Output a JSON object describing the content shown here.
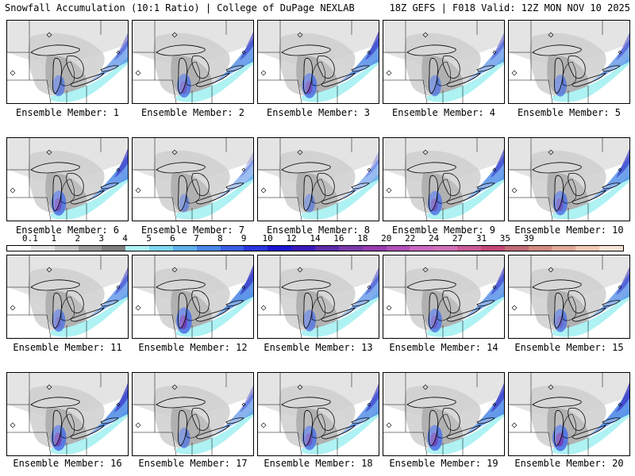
{
  "header": {
    "left": "Snowfall Accumulation (10:1 Ratio) | College of DuPage NEXLAB",
    "right": "18Z GEFS | F018 Valid: 12Z MON NOV 10 2025"
  },
  "colorbar": {
    "labels": [
      "0.1",
      "1",
      "2",
      "3",
      "4",
      "5",
      "6",
      "7",
      "8",
      "9",
      "10",
      "12",
      "14",
      "16",
      "18",
      "20",
      "22",
      "24",
      "27",
      "31",
      "35",
      "39"
    ],
    "colors": [
      "#ffffff",
      "#e2e2e2",
      "#c4c4c4",
      "#9a9a9a",
      "#7e7e7e",
      "#aef2f4",
      "#7fd8ee",
      "#5fb0ea",
      "#4a88e6",
      "#3a5ee4",
      "#2a36dc",
      "#1b14d0",
      "#3a18b8",
      "#5a2aa8",
      "#7a3aa8",
      "#963cb0",
      "#b050b8",
      "#c868c0",
      "#d070b8",
      "#c85a98",
      "#c24878",
      "#c06a78",
      "#d08a80",
      "#e0a898",
      "#f0c8b4",
      "#f8e2d4"
    ]
  },
  "panels": [
    {
      "label": "Ensemble Member: 1",
      "intensity": 0.55
    },
    {
      "label": "Ensemble Member: 2",
      "intensity": 0.75
    },
    {
      "label": "Ensemble Member: 3",
      "intensity": 0.85
    },
    {
      "label": "Ensemble Member: 4",
      "intensity": 0.55
    },
    {
      "label": "Ensemble Member: 5",
      "intensity": 0.6
    },
    {
      "label": "Ensemble Member: 6",
      "intensity": 0.85
    },
    {
      "label": "Ensemble Member: 7",
      "intensity": 0.3
    },
    {
      "label": "Ensemble Member: 8",
      "intensity": 0.35
    },
    {
      "label": "Ensemble Member: 9",
      "intensity": 0.8
    },
    {
      "label": "Ensemble Member: 10",
      "intensity": 0.8
    },
    {
      "label": "Ensemble Member: 11",
      "intensity": 0.65
    },
    {
      "label": "Ensemble Member: 12",
      "intensity": 0.95
    },
    {
      "label": "Ensemble Member: 13",
      "intensity": 0.6
    },
    {
      "label": "Ensemble Member: 14",
      "intensity": 0.75
    },
    {
      "label": "Ensemble Member: 15",
      "intensity": 0.7
    },
    {
      "label": "Ensemble Member: 16",
      "intensity": 0.9
    },
    {
      "label": "Ensemble Member: 17",
      "intensity": 0.5
    },
    {
      "label": "Ensemble Member: 18",
      "intensity": 0.8
    },
    {
      "label": "Ensemble Member: 19",
      "intensity": 0.9
    },
    {
      "label": "Ensemble Member: 20",
      "intensity": 0.95
    }
  ]
}
